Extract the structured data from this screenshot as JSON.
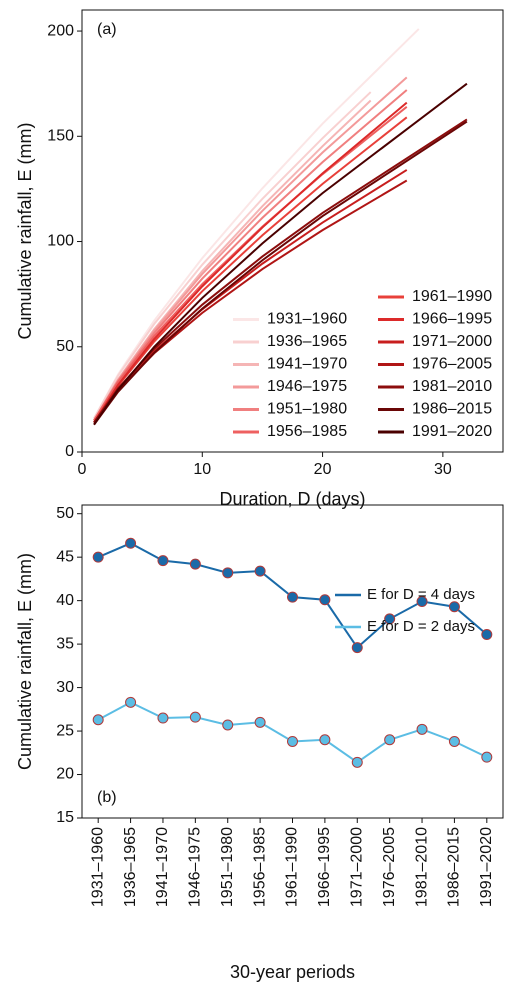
{
  "chart_data": [
    {
      "type": "line",
      "annotation": "(a)",
      "xlabel": "Duration, D (days)",
      "ylabel": "Cumulative rainfall, E (mm)",
      "xlim": [
        0,
        35
      ],
      "ylim": [
        0,
        210
      ],
      "xticks": [
        0,
        10,
        20,
        30
      ],
      "yticks": [
        0,
        50,
        100,
        150,
        200
      ],
      "legend": "lower right",
      "legend_columns": 2,
      "series": [
        {
          "name": "1931–1960",
          "color": "#fbe6e6",
          "x": [
            1,
            3,
            6,
            10,
            15,
            20,
            28
          ],
          "values": [
            16,
            36.9,
            62.4,
            92.1,
            125.3,
            156.0,
            201
          ]
        },
        {
          "name": "1936–1965",
          "color": "#f8d0d0",
          "x": [
            1,
            3,
            6,
            10,
            15,
            20,
            24
          ],
          "values": [
            16,
            36.3,
            60.8,
            89.0,
            120.3,
            149.1,
            171
          ]
        },
        {
          "name": "1941–1970",
          "color": "#f5b5b5",
          "x": [
            1,
            3,
            6,
            10,
            15,
            20,
            24
          ],
          "values": [
            15,
            34.5,
            58.3,
            86.0,
            116.8,
            145.3,
            167
          ]
        },
        {
          "name": "1946–1975",
          "color": "#f39a9a",
          "x": [
            1,
            3,
            6,
            10,
            15,
            20,
            27
          ],
          "values": [
            15,
            34.2,
            57.6,
            84.6,
            114.6,
            142.3,
            178
          ]
        },
        {
          "name": "1951–1980",
          "color": "#f07f7f",
          "x": [
            1,
            3,
            6,
            10,
            15,
            20,
            27
          ],
          "values": [
            15,
            33.8,
            56.5,
            82.4,
            111.3,
            137.7,
            172
          ]
        },
        {
          "name": "1956–1985",
          "color": "#ee6060",
          "x": [
            1,
            3,
            6,
            10,
            15,
            20,
            27
          ],
          "values": [
            15,
            33.3,
            55.1,
            79.8,
            107.1,
            132.0,
            164
          ]
        },
        {
          "name": "1961–1990",
          "color": "#e8403a",
          "x": [
            1,
            3,
            6,
            10,
            15,
            20,
            27
          ],
          "values": [
            14,
            31.5,
            52.5,
            76.4,
            103.0,
            127.4,
            159
          ]
        },
        {
          "name": "1966–1995",
          "color": "#dc2a2a",
          "x": [
            1,
            3,
            6,
            10,
            15,
            20,
            27
          ],
          "values": [
            14,
            31.9,
            53.7,
            78.7,
            106.7,
            132.4,
            166
          ]
        },
        {
          "name": "1971–2000",
          "color": "#c81e1e",
          "x": [
            1,
            3,
            6,
            10,
            15,
            20,
            27
          ],
          "values": [
            14,
            29.7,
            47.8,
            67.8,
            89.5,
            109.0,
            134
          ]
        },
        {
          "name": "1976–2005",
          "color": "#b01515",
          "x": [
            1,
            3,
            6,
            10,
            15,
            20,
            27
          ],
          "values": [
            14,
            29.4,
            46.9,
            66.1,
            86.9,
            105.4,
            129
          ]
        },
        {
          "name": "1981–2010",
          "color": "#8c0d0d",
          "x": [
            1,
            3,
            6,
            10,
            15,
            20,
            32
          ],
          "values": [
            14,
            30.2,
            49.0,
            70.0,
            92.9,
            113.6,
            158
          ]
        },
        {
          "name": "1986–2015",
          "color": "#6a0606",
          "x": [
            1,
            3,
            6,
            10,
            15,
            20,
            32
          ],
          "values": [
            13,
            28.6,
            47.1,
            68.1,
            91.1,
            112.1,
            157
          ]
        },
        {
          "name": "1991–2020",
          "color": "#4a0000",
          "x": [
            1,
            3,
            6,
            10,
            15,
            20,
            32
          ],
          "values": [
            13,
            29.6,
            49.9,
            73.2,
            99.1,
            123.0,
            175
          ]
        }
      ]
    },
    {
      "type": "line",
      "annotation": "(b)",
      "xlabel": "30-year periods",
      "ylabel": "Cumulative rainfall, E (mm)",
      "ylim": [
        15,
        51
      ],
      "yticks": [
        15,
        20,
        25,
        30,
        35,
        40,
        45,
        50
      ],
      "legend": "center right",
      "markers": true,
      "marker_edge_color": "#b03a3a",
      "categories": [
        "1931–1960",
        "1936–1965",
        "1941–1970",
        "1946–1975",
        "1951–1980",
        "1956–1985",
        "1961–1990",
        "1966–1995",
        "1971–2000",
        "1976–2005",
        "1981–2010",
        "1986–2015",
        "1991–2020"
      ],
      "series": [
        {
          "name": "E for D = 4 days",
          "color": "#1a6aa8",
          "values": [
            45.0,
            46.6,
            44.6,
            44.2,
            43.2,
            43.4,
            40.4,
            40.1,
            34.6,
            37.9,
            39.9,
            39.3,
            36.1
          ]
        },
        {
          "name": "E for D = 2 days",
          "color": "#5bbde4",
          "values": [
            26.3,
            28.3,
            26.5,
            26.6,
            25.7,
            26.0,
            23.8,
            24.0,
            21.4,
            24.0,
            25.2,
            23.8,
            22.0
          ]
        }
      ]
    }
  ]
}
